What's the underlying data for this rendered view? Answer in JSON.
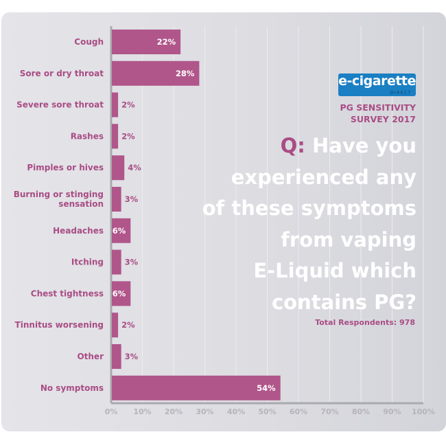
{
  "chart_data": {
    "type": "bar",
    "orientation": "horizontal",
    "categories": [
      "Cough",
      "Sore or dry throat",
      "Severe sore throat",
      "Rashes",
      "Pimples or hives",
      "Burning or stinging sensation",
      "Headaches",
      "Itching",
      "Chest tightness",
      "Tinnitus worsening",
      "Other",
      "No symptoms"
    ],
    "values": [
      22,
      28,
      2,
      2,
      4,
      3,
      6,
      3,
      6,
      2,
      3,
      54
    ],
    "data_labels": [
      "22%",
      "28%",
      "2%",
      "2%",
      "4%",
      "3%",
      "6%",
      "3%",
      "6%",
      "2%",
      "3%",
      "54%"
    ],
    "xlim": [
      0,
      100
    ],
    "x_ticks": [
      "0%",
      "10%",
      "20%",
      "30%",
      "40%",
      "50%",
      "60%",
      "70%",
      "80%",
      "90%",
      "100%"
    ],
    "grid": true,
    "colors": {
      "bar": "#b0568a",
      "label": "#a94c84",
      "axis": "#a9a9b0"
    }
  },
  "logo": {
    "main": "e-cigarette",
    "sub": "DIRECT",
    "color": "#1a7fc3"
  },
  "survey": {
    "line1": "PG SENSITIVITY",
    "line2": "SURVEY 2017"
  },
  "question": {
    "prefix": "Q:",
    "lines": [
      "Have you",
      "experienced any",
      "of these symptoms",
      "from vaping",
      "E-Liquid which",
      "contains PG?"
    ]
  },
  "total": "Total Respondents: 978"
}
